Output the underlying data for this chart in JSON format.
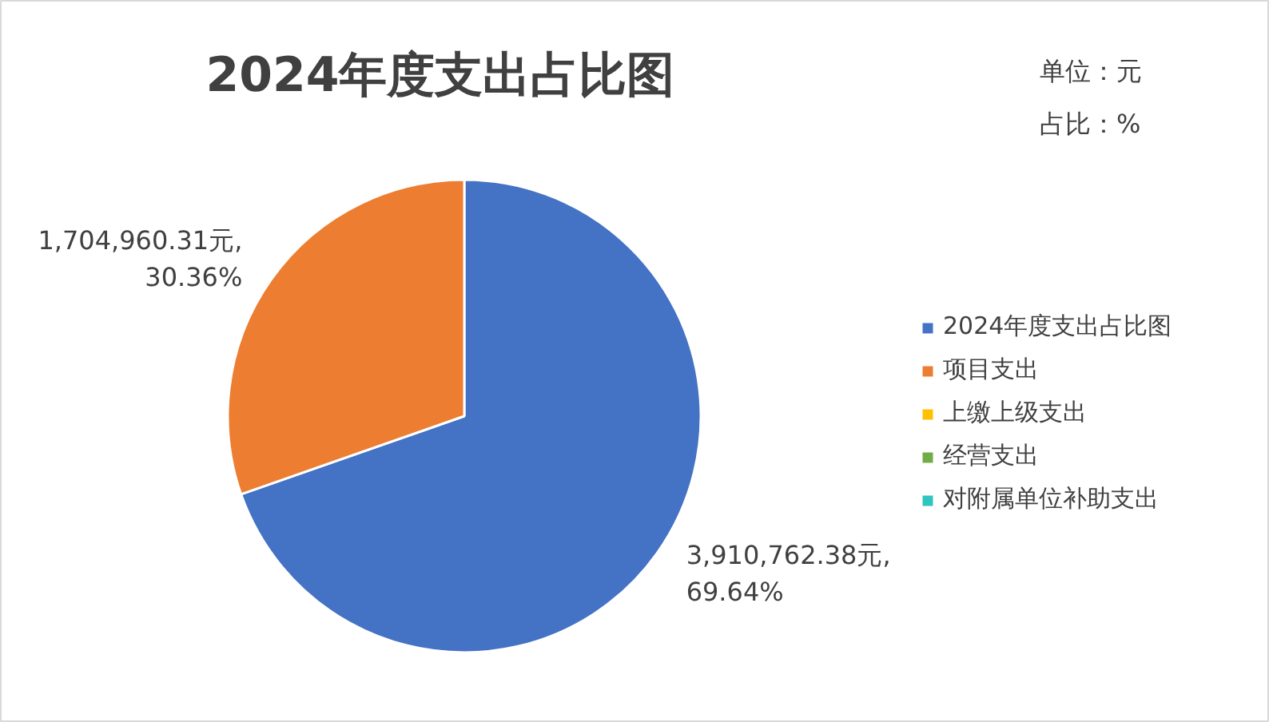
{
  "chart_data": {
    "type": "pie",
    "title": "2024年度支出占比图",
    "categories": [
      "2024年度支出占比图",
      "项目支出",
      "上缴上级支出",
      "经营支出",
      "对附属单位补助支出"
    ],
    "values": [
      3910762.38,
      1704960.31,
      0,
      0,
      0
    ],
    "colors": [
      "#4472c4",
      "#ed7d31",
      "#ffc000",
      "#70ad47",
      "#2ec4c0"
    ],
    "value_labels": [
      "3,910,762.38元,\n69.64%",
      "1,704,960.31元,\n30.36%",
      null,
      null,
      null
    ],
    "annotations": [
      "单位：元",
      "占比：%"
    ],
    "legend": "right"
  }
}
